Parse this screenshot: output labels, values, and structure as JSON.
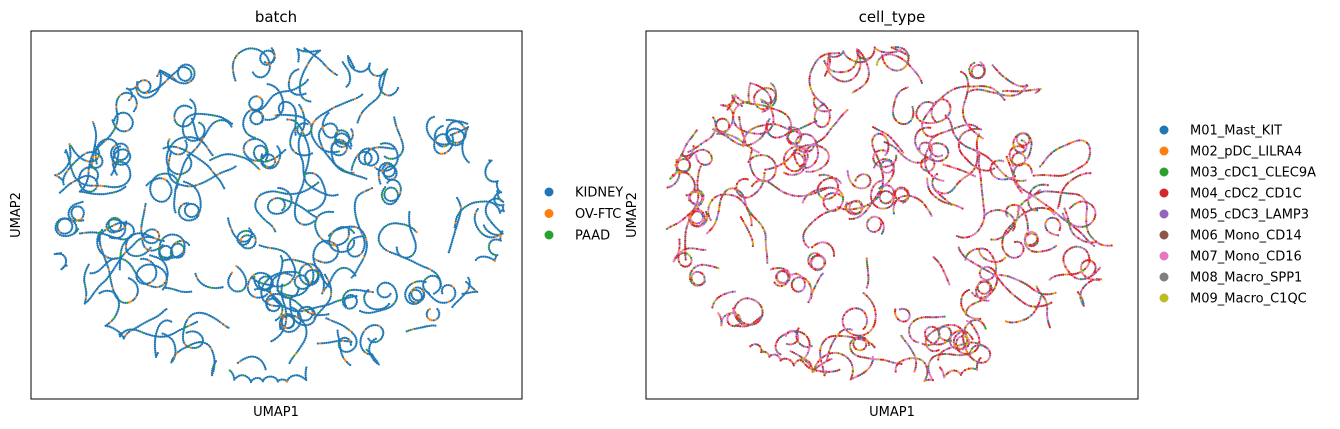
{
  "chart_data": [
    {
      "type": "scatter",
      "title": "batch",
      "xlabel": "UMAP1",
      "ylabel": "UMAP2",
      "xticks": "none",
      "yticks": "none",
      "grid": false,
      "legend_position": "right",
      "series": [
        {
          "name": "KIDNEY",
          "color": "#1f77b4",
          "share": 0.9
        },
        {
          "name": "OV-FTC",
          "color": "#ff7f0e",
          "share": 0.06
        },
        {
          "name": "PAAD",
          "color": "#2ca02c",
          "share": 0.04
        }
      ]
    },
    {
      "type": "scatter",
      "title": "cell_type",
      "xlabel": "UMAP1",
      "ylabel": "UMAP2",
      "xticks": "none",
      "yticks": "none",
      "grid": false,
      "legend_position": "right",
      "series": [
        {
          "name": "M01_Mast_KIT",
          "color": "#1f77b4"
        },
        {
          "name": "M02_pDC_LILRA4",
          "color": "#ff7f0e"
        },
        {
          "name": "M03_cDC1_CLEC9A",
          "color": "#2ca02c"
        },
        {
          "name": "M04_cDC2_CD1C",
          "color": "#d62728"
        },
        {
          "name": "M05_cDC3_LAMP3",
          "color": "#9467bd"
        },
        {
          "name": "M06_Mono_CD14",
          "color": "#8c564b"
        },
        {
          "name": "M07_Mono_CD16",
          "color": "#e377c2"
        },
        {
          "name": "M08_Macro_SPP1",
          "color": "#7f7f7f"
        },
        {
          "name": "M09_Macro_C1QC",
          "color": "#bcbd22"
        }
      ]
    }
  ]
}
